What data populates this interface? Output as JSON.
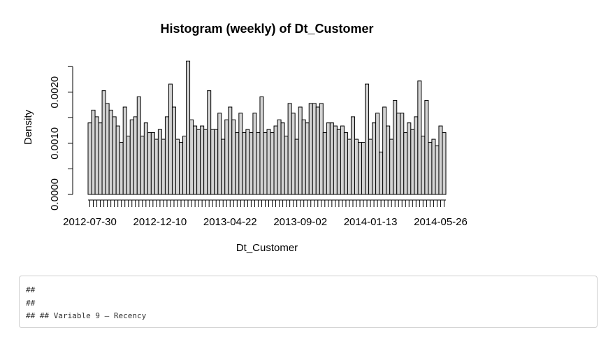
{
  "chart_data": {
    "type": "bar",
    "title": "Histogram (weekly) of Dt_Customer",
    "xlabel": "Dt_Customer",
    "ylabel": "Density",
    "ylim": [
      0,
      0.0026
    ],
    "y_ticks": [
      0.0,
      0.001,
      0.002
    ],
    "y_tick_labels": [
      "0.0000",
      "0.0010",
      "0.0020"
    ],
    "x_tick_labels": [
      "2012-07-30",
      "2012-12-10",
      "2013-04-22",
      "2013-09-02",
      "2014-01-13",
      "2014-05-26"
    ],
    "x_tick_label_bins": [
      0,
      20,
      40,
      60,
      80,
      100
    ],
    "bar_fill": "#d3d3d3",
    "bar_stroke": "#000000",
    "values": [
      0.0014,
      0.00165,
      0.00152,
      0.0014,
      0.00203,
      0.00178,
      0.00165,
      0.00152,
      0.00134,
      0.00102,
      0.00171,
      0.00114,
      0.00146,
      0.00152,
      0.00191,
      0.00114,
      0.0014,
      0.00121,
      0.00121,
      0.00108,
      0.00127,
      0.00108,
      0.00152,
      0.00216,
      0.00171,
      0.00108,
      0.00102,
      0.00114,
      0.00261,
      0.00146,
      0.00134,
      0.00127,
      0.00134,
      0.00127,
      0.00203,
      0.00127,
      0.00127,
      0.00159,
      0.00108,
      0.00146,
      0.00171,
      0.00146,
      0.00121,
      0.00159,
      0.00121,
      0.00127,
      0.00121,
      0.00159,
      0.00121,
      0.00191,
      0.00121,
      0.00127,
      0.00121,
      0.00134,
      0.00146,
      0.0014,
      0.00114,
      0.00178,
      0.00159,
      0.00108,
      0.00171,
      0.00146,
      0.0014,
      0.00178,
      0.00178,
      0.00171,
      0.00178,
      0.00121,
      0.0014,
      0.0014,
      0.00134,
      0.00127,
      0.00134,
      0.00121,
      0.00108,
      0.00152,
      0.00108,
      0.00102,
      0.00102,
      0.00216,
      0.00108,
      0.0014,
      0.00159,
      0.00083,
      0.00171,
      0.00134,
      0.00108,
      0.00184,
      0.00159,
      0.00159,
      0.00121,
      0.0014,
      0.00127,
      0.00152,
      0.00222,
      0.00114,
      0.00184,
      0.00102,
      0.00108,
      0.00095,
      0.00134,
      0.00121
    ]
  },
  "console": {
    "lines": [
      "##",
      "##",
      "## ## Variable 9 — Recency"
    ]
  }
}
